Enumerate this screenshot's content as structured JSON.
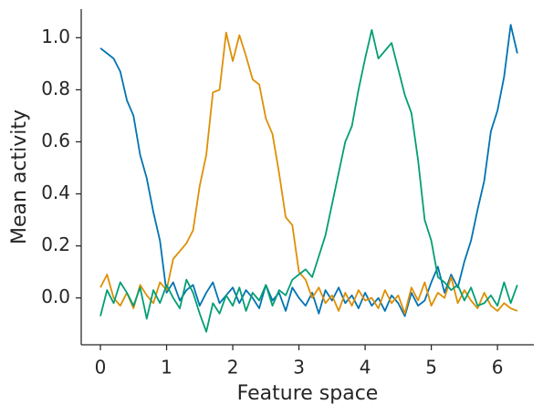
{
  "chart_data": {
    "type": "line",
    "xlabel": "Feature space",
    "ylabel": "Mean activity",
    "x": [
      0,
      0.1,
      0.2,
      0.3,
      0.4,
      0.5,
      0.6,
      0.7,
      0.8,
      0.9,
      1.0,
      1.1,
      1.2,
      1.3,
      1.4,
      1.5,
      1.6,
      1.7,
      1.8,
      1.9,
      2.0,
      2.1,
      2.2,
      2.3,
      2.4,
      2.5,
      2.6,
      2.7,
      2.8,
      2.9,
      3.0,
      3.1,
      3.2,
      3.3,
      3.4,
      3.5,
      3.6,
      3.7,
      3.8,
      3.9,
      4.0,
      4.1,
      4.2,
      4.3,
      4.4,
      4.5,
      4.6,
      4.7,
      4.8,
      4.9,
      5.0,
      5.1,
      5.2,
      5.3,
      5.4,
      5.5,
      5.6,
      5.7,
      5.8,
      5.9,
      6.0,
      6.1,
      6.2,
      6.3
    ],
    "series": [
      {
        "color": "#0173b2",
        "values": [
          0.96,
          0.94,
          0.92,
          0.87,
          0.76,
          0.7,
          0.55,
          0.46,
          0.33,
          0.22,
          0.02,
          0.06,
          -0.01,
          0.03,
          0.05,
          -0.03,
          0.02,
          0.06,
          -0.02,
          0.01,
          0.04,
          -0.02,
          0.03,
          0.0,
          -0.04,
          0.05,
          -0.01,
          0.02,
          -0.05,
          0.04,
          0.0,
          -0.03,
          0.02,
          -0.06,
          0.03,
          -0.01,
          0.04,
          -0.02,
          0.01,
          -0.04,
          0.02,
          -0.03,
          0.0,
          -0.05,
          0.01,
          -0.02,
          -0.07,
          0.02,
          -0.03,
          -0.01,
          0.06,
          0.12,
          0.02,
          0.09,
          0.04,
          0.14,
          0.22,
          0.34,
          0.45,
          0.64,
          0.72,
          0.85,
          1.05,
          0.94
        ]
      },
      {
        "color": "#de8f05",
        "values": [
          0.04,
          0.09,
          0.0,
          -0.03,
          0.02,
          -0.04,
          0.05,
          0.01,
          -0.02,
          0.06,
          0.03,
          0.15,
          0.18,
          0.21,
          0.26,
          0.43,
          0.55,
          0.79,
          0.8,
          1.02,
          0.91,
          1.01,
          0.93,
          0.84,
          0.82,
          0.69,
          0.63,
          0.48,
          0.31,
          0.28,
          0.1,
          0.07,
          0.0,
          0.04,
          -0.02,
          0.01,
          -0.05,
          0.02,
          -0.03,
          0.03,
          -0.01,
          0.0,
          -0.04,
          0.03,
          -0.02,
          0.01,
          -0.06,
          0.04,
          -0.01,
          0.06,
          -0.03,
          0.02,
          0.0,
          0.08,
          -0.02,
          0.03,
          -0.01,
          -0.04,
          0.02,
          -0.03,
          -0.05,
          -0.02,
          -0.04,
          -0.05
        ]
      },
      {
        "color": "#029e73",
        "values": [
          -0.07,
          0.03,
          -0.02,
          0.06,
          0.02,
          -0.03,
          0.04,
          -0.08,
          0.03,
          -0.02,
          0.05,
          0.0,
          -0.04,
          0.07,
          0.02,
          -0.06,
          -0.13,
          -0.02,
          -0.06,
          0.01,
          -0.03,
          0.04,
          -0.05,
          0.02,
          -0.01,
          0.05,
          -0.03,
          0.03,
          0.01,
          0.07,
          0.09,
          0.11,
          0.08,
          0.16,
          0.24,
          0.36,
          0.48,
          0.6,
          0.66,
          0.8,
          0.92,
          1.03,
          0.92,
          0.95,
          0.98,
          0.88,
          0.78,
          0.71,
          0.53,
          0.3,
          0.22,
          0.08,
          0.06,
          0.03,
          0.05,
          -0.01,
          0.04,
          -0.03,
          -0.02,
          0.01,
          -0.03,
          0.06,
          -0.02,
          0.05
        ]
      }
    ],
    "xlim": [
      -0.29,
      6.55
    ],
    "ylim": [
      -0.18,
      1.11
    ],
    "xticks": [
      0,
      1,
      2,
      3,
      4,
      5,
      6
    ],
    "yticks": [
      {
        "value": 0,
        "label": "0.0"
      },
      {
        "value": 0.2,
        "label": "0.2"
      },
      {
        "value": 0.4,
        "label": "0.4"
      },
      {
        "value": 0.6,
        "label": "0.6"
      },
      {
        "value": 0.8,
        "label": "0.8"
      },
      {
        "value": 1,
        "label": "1.0"
      }
    ],
    "grid": false
  }
}
